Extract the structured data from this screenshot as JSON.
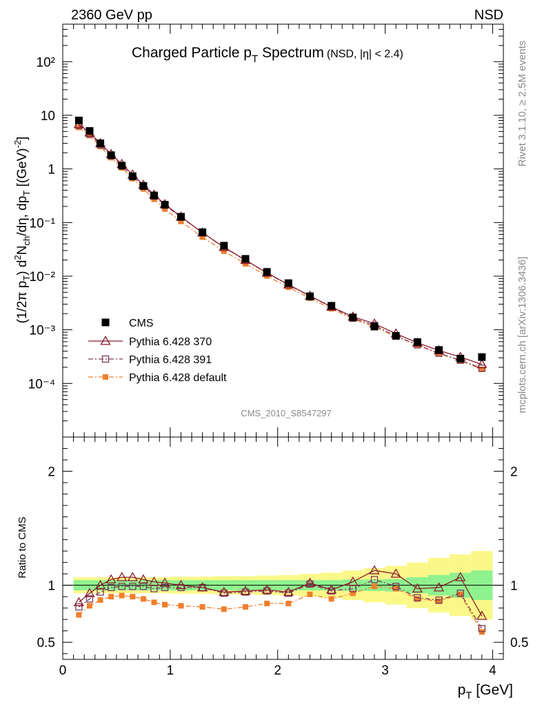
{
  "header": {
    "left": "2360 GeV pp",
    "right": "NSD"
  },
  "side_text": {
    "rivet": "Rivet 3.1.10, ≥ 2.5M events",
    "mcplots": "mcplots.cern.ch [arXiv:1306.3436]"
  },
  "chart_data": {
    "type": "line",
    "title": {
      "main_pre": "Charged Particle p",
      "main_sub": "T",
      "main_post": " Spectrum",
      "detail": "(NSD, |η| < 2.4)"
    },
    "watermark": "CMS_2010_S8547297",
    "xlabel": {
      "main": "p",
      "sub": "T",
      "unit": " [GeV]"
    },
    "xlim": [
      0,
      4.1
    ],
    "x_ticks": [
      "0",
      "1",
      "2",
      "3",
      "4"
    ],
    "upper": {
      "yscale": "log",
      "ylim": [
        1e-05,
        500
      ],
      "ylabel": "(1/2π p_T) d²N_ch/dη, dp_T [(GeV)⁻²]",
      "y_ticks": [
        "10⁻⁴",
        "10⁻³",
        "10⁻²",
        "10⁻¹",
        "1",
        "10",
        "10²"
      ]
    },
    "lower": {
      "ylim": [
        0.35,
        2.3
      ],
      "ylabel": "Ratio to CMS",
      "y_ticks": [
        "0.5",
        "1",
        "2"
      ],
      "band_edges": [
        0.1,
        0.2,
        0.3,
        0.4,
        0.5,
        0.6,
        0.7,
        0.8,
        0.9,
        1.0,
        1.2,
        1.4,
        1.6,
        1.8,
        2.0,
        2.2,
        2.4,
        2.6,
        2.8,
        3.0,
        3.2,
        3.4,
        3.6,
        3.8,
        4.0
      ],
      "band_inner": [
        0.045,
        0.045,
        0.045,
        0.045,
        0.045,
        0.045,
        0.045,
        0.045,
        0.045,
        0.045,
        0.045,
        0.045,
        0.045,
        0.045,
        0.045,
        0.045,
        0.045,
        0.05,
        0.05,
        0.055,
        0.07,
        0.09,
        0.11,
        0.13
      ],
      "band_outer": [
        0.07,
        0.07,
        0.07,
        0.07,
        0.07,
        0.07,
        0.07,
        0.07,
        0.07,
        0.075,
        0.075,
        0.08,
        0.08,
        0.085,
        0.09,
        0.1,
        0.11,
        0.13,
        0.15,
        0.17,
        0.2,
        0.24,
        0.27,
        0.3
      ]
    },
    "x": [
      0.15,
      0.25,
      0.35,
      0.45,
      0.55,
      0.65,
      0.75,
      0.85,
      0.95,
      1.1,
      1.3,
      1.5,
      1.7,
      1.9,
      2.1,
      2.3,
      2.5,
      2.7,
      2.9,
      3.1,
      3.3,
      3.5,
      3.7,
      3.9
    ],
    "series": [
      {
        "name": "CMS",
        "color": "#000000",
        "values": [
          8.0,
          5.1,
          3.0,
          1.8,
          1.15,
          0.73,
          0.48,
          0.32,
          0.215,
          0.128,
          0.066,
          0.037,
          0.021,
          0.012,
          0.0074,
          0.0042,
          0.0028,
          0.0017,
          0.00115,
          0.00077,
          0.00059,
          0.00042,
          0.00029,
          0.00031
        ]
      },
      {
        "name": "Pythia 6.428 370",
        "color": "#8b1a2b",
        "ratio": [
          0.85,
          0.93,
          1.0,
          1.05,
          1.07,
          1.07,
          1.05,
          1.03,
          1.02,
          1.0,
          0.98,
          0.94,
          0.95,
          0.96,
          0.94,
          1.02,
          0.96,
          1.03,
          1.13,
          1.1,
          0.97,
          0.98,
          1.07,
          0.73
        ]
      },
      {
        "name": "Pythia 6.428 391",
        "color": "#7a3a5a",
        "ratio": [
          0.81,
          0.88,
          0.94,
          0.98,
          0.99,
          0.99,
          0.99,
          0.97,
          0.98,
          0.98,
          0.98,
          0.93,
          0.94,
          0.95,
          0.93,
          1.01,
          0.95,
          0.97,
          1.05,
          0.99,
          0.89,
          0.87,
          0.93,
          0.62
        ]
      },
      {
        "name": "Pythia 6.428 default",
        "color": "#f07f2c",
        "ratio": [
          0.74,
          0.82,
          0.87,
          0.9,
          0.91,
          0.9,
          0.88,
          0.85,
          0.83,
          0.82,
          0.81,
          0.79,
          0.81,
          0.84,
          0.84,
          0.92,
          0.88,
          0.93,
          0.99,
          0.97,
          0.88,
          0.86,
          0.92,
          0.59
        ]
      }
    ]
  }
}
